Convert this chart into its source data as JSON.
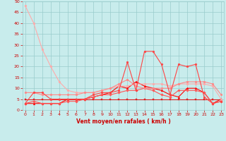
{
  "x": [
    0,
    1,
    2,
    3,
    4,
    5,
    6,
    7,
    8,
    9,
    10,
    11,
    12,
    13,
    14,
    15,
    16,
    17,
    18,
    19,
    20,
    21,
    22,
    23
  ],
  "series": [
    {
      "color": "#ff0000",
      "linewidth": 0.8,
      "marker": "^",
      "markersize": 2.0,
      "values": [
        3,
        3,
        3,
        3,
        3,
        5,
        5,
        5,
        6,
        7,
        8,
        11,
        10,
        13,
        11,
        10,
        9,
        7,
        6,
        10,
        10,
        8,
        3,
        5
      ]
    },
    {
      "color": "#dd2222",
      "linewidth": 0.8,
      "marker": "s",
      "markersize": 1.8,
      "values": [
        5,
        5,
        5,
        5,
        5,
        5,
        5,
        5,
        5,
        5,
        5,
        5,
        5,
        5,
        5,
        5,
        5,
        5,
        5,
        5,
        5,
        5,
        5,
        5
      ]
    },
    {
      "color": "#ff5555",
      "linewidth": 0.8,
      "marker": "D",
      "markersize": 1.8,
      "values": [
        3,
        4,
        3,
        3,
        3,
        4,
        4,
        5,
        6,
        7,
        7,
        8,
        9,
        9,
        10,
        9,
        7,
        6,
        9,
        9,
        9,
        8,
        3,
        4
      ]
    },
    {
      "color": "#ffaaaa",
      "linewidth": 0.8,
      "marker": "o",
      "markersize": 2.0,
      "values": [
        48,
        40,
        28,
        20,
        13,
        9,
        8,
        8,
        8,
        9,
        10,
        11,
        11,
        12,
        12,
        12,
        12,
        11,
        12,
        12,
        12,
        12,
        11,
        5
      ]
    },
    {
      "color": "#ff8888",
      "linewidth": 0.8,
      "marker": "o",
      "markersize": 2.0,
      "values": [
        8,
        8,
        7,
        7,
        7,
        7,
        7,
        8,
        8,
        9,
        10,
        12,
        14,
        11,
        10,
        10,
        10,
        10,
        12,
        13,
        13,
        13,
        12,
        7
      ]
    },
    {
      "color": "#ff4444",
      "linewidth": 0.8,
      "marker": "o",
      "markersize": 2.0,
      "values": [
        3,
        8,
        8,
        5,
        5,
        5,
        5,
        5,
        7,
        8,
        8,
        9,
        22,
        9,
        27,
        27,
        21,
        7,
        21,
        20,
        21,
        6,
        3,
        4
      ]
    }
  ],
  "xlabel": "Vent moyen/en rafales ( km/h )",
  "xlim": [
    -0.3,
    23.3
  ],
  "ylim": [
    0,
    50
  ],
  "yticks": [
    0,
    5,
    10,
    15,
    20,
    25,
    30,
    35,
    40,
    45,
    50
  ],
  "xticks": [
    0,
    1,
    2,
    3,
    4,
    5,
    6,
    7,
    8,
    9,
    10,
    11,
    12,
    13,
    14,
    15,
    16,
    17,
    18,
    19,
    20,
    21,
    22,
    23
  ],
  "bg_color": "#c8ecec",
  "grid_color": "#99cccc",
  "tick_color": "#cc0000",
  "label_color": "#cc0000"
}
